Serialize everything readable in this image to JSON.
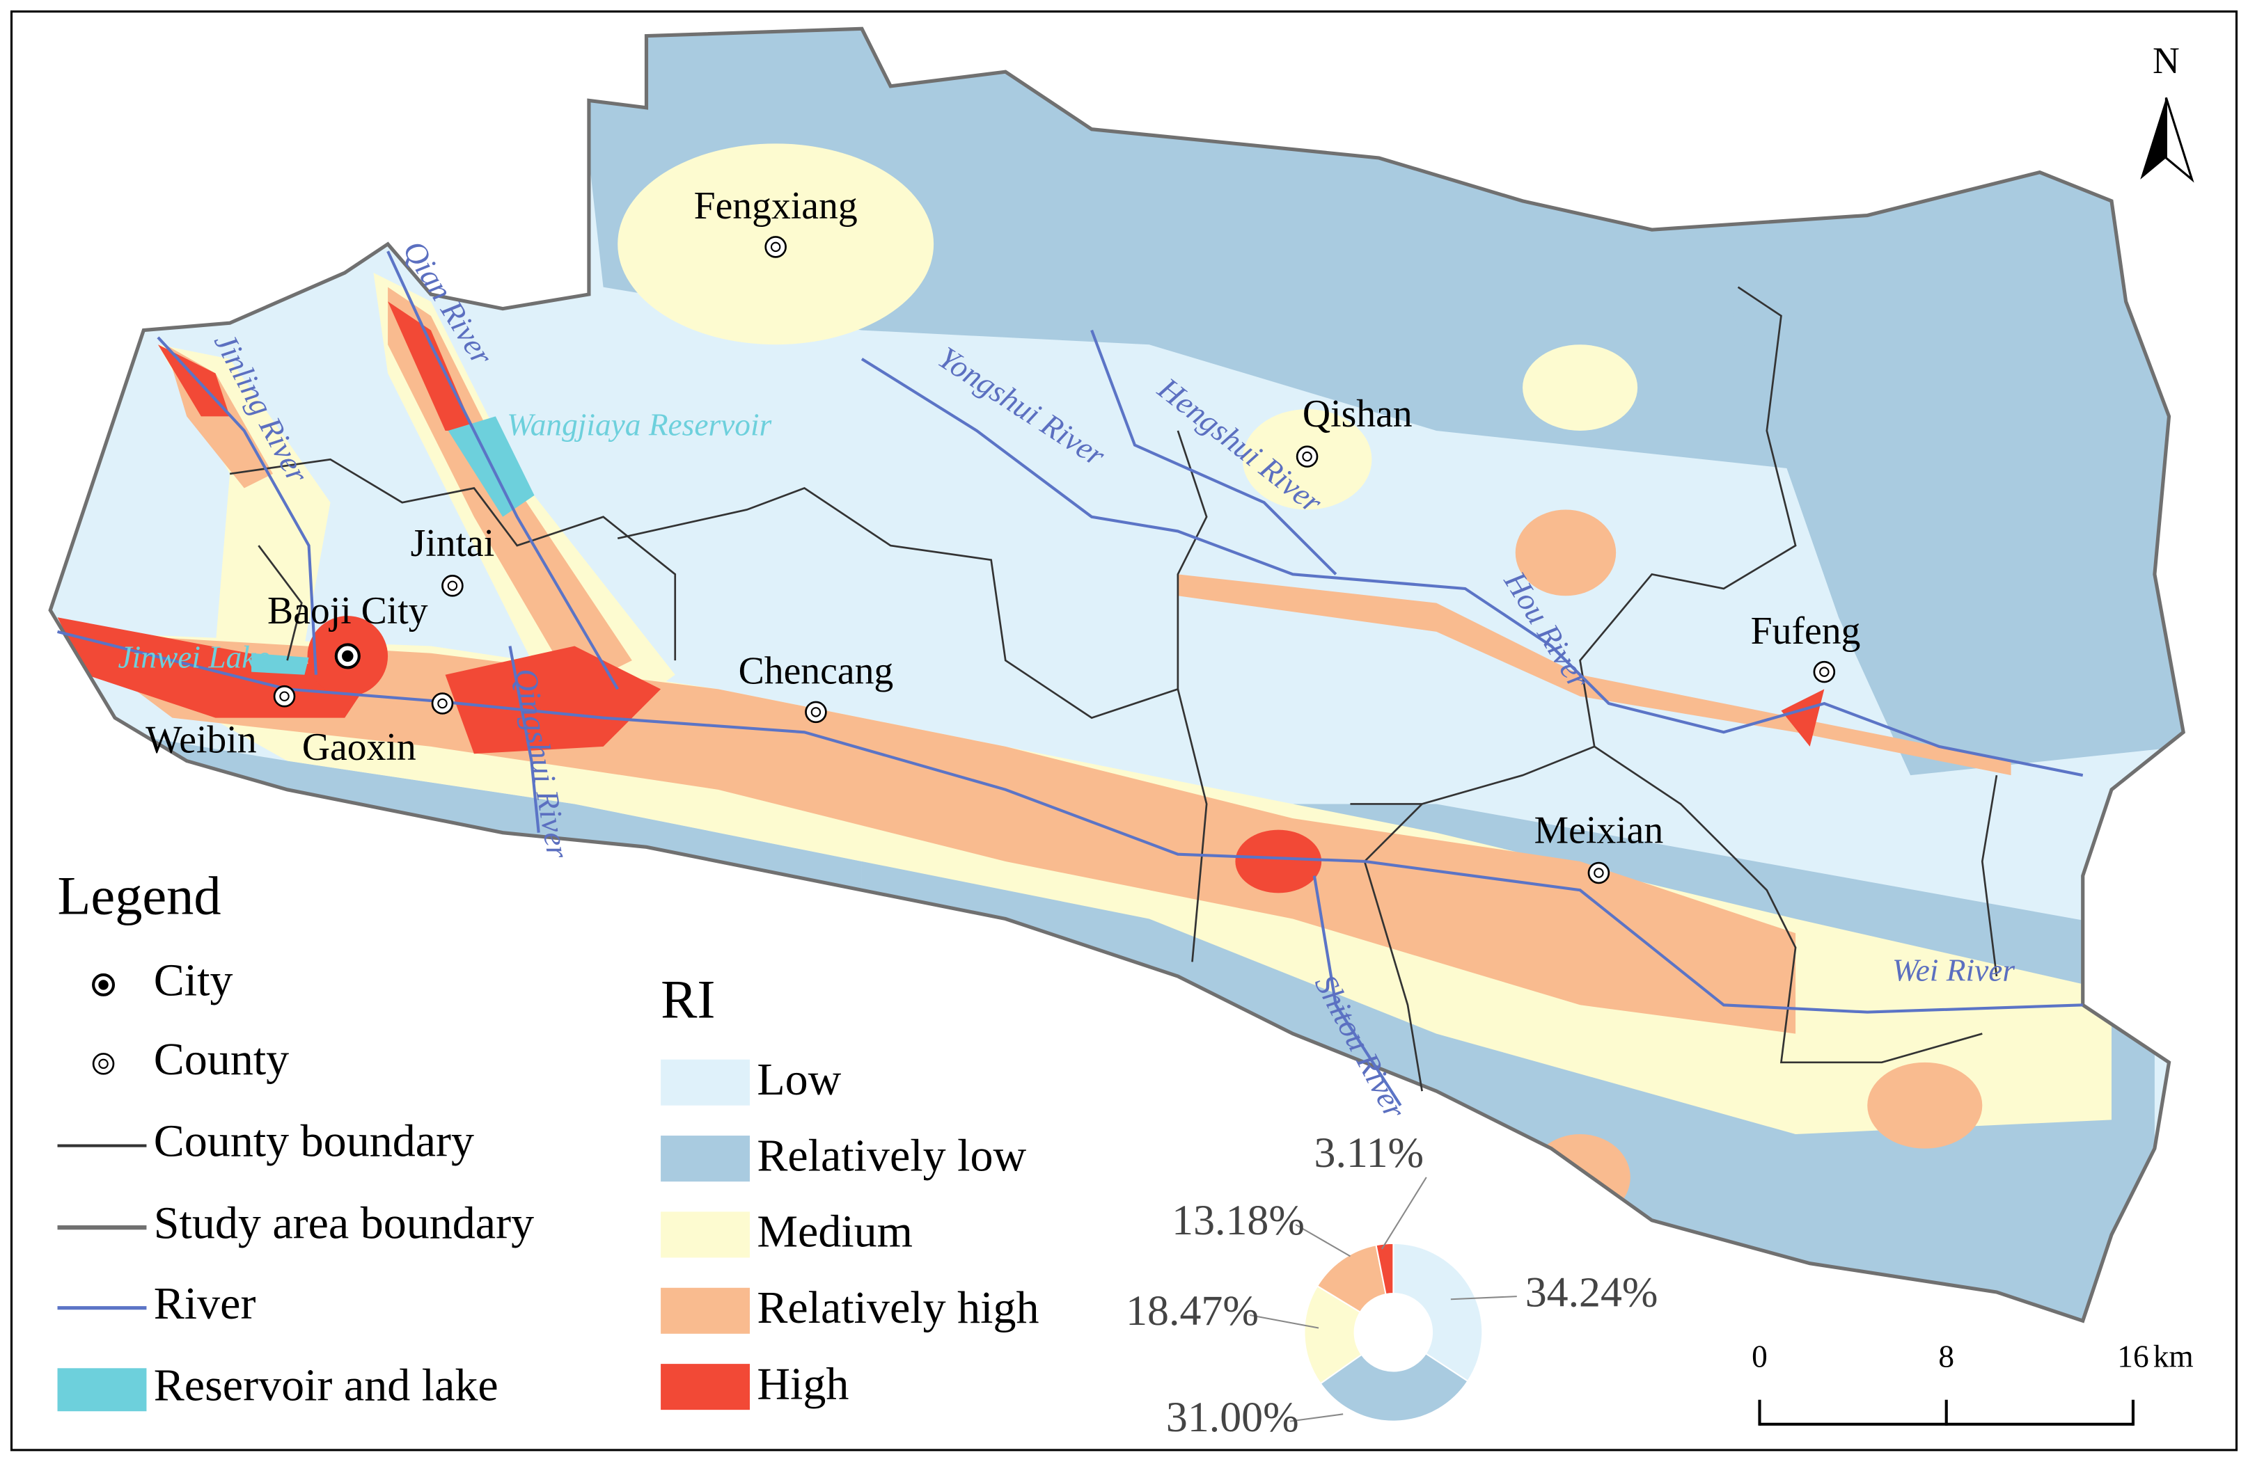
{
  "north": "N",
  "places": [
    {
      "label": "Fengxiang",
      "kind": "county"
    },
    {
      "label": "Qishan",
      "kind": "county"
    },
    {
      "label": "Jintai",
      "kind": "county"
    },
    {
      "label": "Baoji City",
      "kind": "city"
    },
    {
      "label": "Chencang",
      "kind": "county"
    },
    {
      "label": "Weibin",
      "kind": "county"
    },
    {
      "label": "Gaoxin",
      "kind": "county"
    },
    {
      "label": "Meixian",
      "kind": "county"
    },
    {
      "label": "Fufeng",
      "kind": "county"
    }
  ],
  "water_labels": [
    "Qian River",
    "Jinling River",
    "Wangjiaya Reservoir",
    "Jinwei Lake",
    "Yongshui River",
    "Hengshui River",
    "Hou River",
    "Qingshui River",
    "Shitou River",
    "Wei River"
  ],
  "legend": {
    "title": "Legend",
    "items": [
      "City",
      "County",
      "County boundary",
      "Study area boundary",
      "River",
      "Reservoir and lake"
    ]
  },
  "ri_legend": {
    "title": "RI",
    "classes": [
      {
        "label": "Low",
        "color": "#dff1fa"
      },
      {
        "label": "Relatively low",
        "color": "#a9cbe0"
      },
      {
        "label": "Medium",
        "color": "#fdfbd0"
      },
      {
        "label": "Relatively high",
        "color": "#f9bb8f"
      },
      {
        "label": "High",
        "color": "#f24936"
      }
    ]
  },
  "proportion_chart": {
    "type": "pie",
    "values": [
      34.24,
      31.0,
      18.47,
      13.18,
      3.11
    ],
    "value_labels": [
      "34.24%",
      "31.00%",
      "18.47%",
      "13.18%",
      "3.11%"
    ]
  },
  "scale_bar": {
    "ticks": [
      0,
      8,
      16
    ],
    "unit": "km"
  }
}
